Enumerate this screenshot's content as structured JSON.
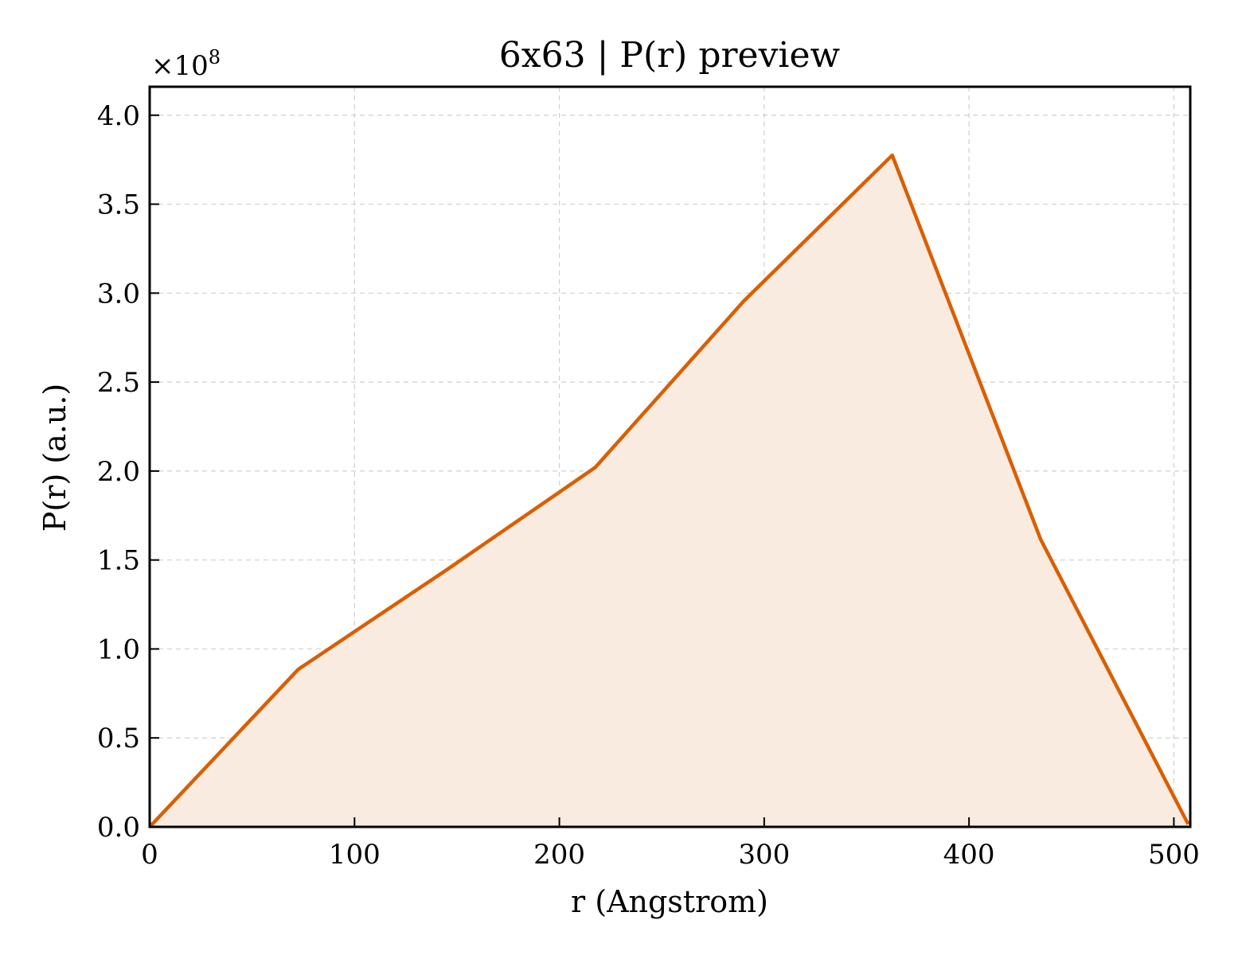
{
  "chart_data": {
    "type": "area",
    "title": "6x63 | P(r) preview",
    "xlabel": "r (Angstrom)",
    "ylabel": "P(r) (a.u.)",
    "y_offset_text": "×10",
    "y_offset_exponent": "8",
    "xlim": [
      0,
      508
    ],
    "ylim": [
      0,
      4.16
    ],
    "xticks": [
      0,
      100,
      200,
      300,
      400,
      500
    ],
    "xtick_labels": [
      "0",
      "100",
      "200",
      "300",
      "400",
      "500"
    ],
    "yticks": [
      0.0,
      0.5,
      1.0,
      1.5,
      2.0,
      2.5,
      3.0,
      3.5,
      4.0
    ],
    "ytick_labels": [
      "0.0",
      "0.5",
      "1.0",
      "1.5",
      "2.0",
      "2.5",
      "3.0",
      "3.5",
      "4.0"
    ],
    "grid": true,
    "series": [
      {
        "x": [
          0,
          72.5,
          145,
          217.5,
          290,
          362.5,
          435,
          507
        ],
        "y": [
          0.0,
          0.885,
          1.445,
          2.02,
          2.955,
          3.775,
          1.615,
          0.015
        ],
        "color": "#d95f02",
        "fill_color": "#f9ebe0"
      }
    ]
  }
}
